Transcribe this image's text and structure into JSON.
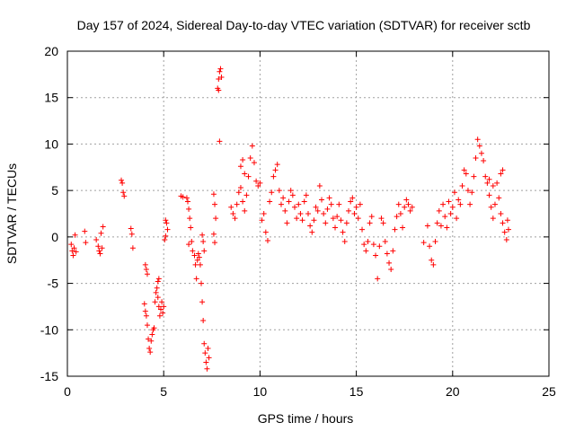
{
  "chart_data": {
    "type": "scatter",
    "title": "Day 157 of 2024, Sidereal Day-to-day VTEC variation (SDTVAR) for receiver sctb",
    "xlabel": "GPS time / hours",
    "ylabel": "SDTVAR / TECUs",
    "xlim": [
      0,
      25
    ],
    "ylim": [
      -15,
      20
    ],
    "xticks": [
      0,
      5,
      10,
      15,
      20,
      25
    ],
    "yticks": [
      -15,
      -10,
      -5,
      0,
      5,
      10,
      15,
      20
    ],
    "grid": true,
    "marker": "+",
    "color": "#ff0000",
    "series": [
      {
        "name": "SDTVAR",
        "points": [
          [
            0.2,
            -0.8
          ],
          [
            0.25,
            -1.5
          ],
          [
            0.3,
            -2.0
          ],
          [
            0.35,
            -1.2
          ],
          [
            0.4,
            0.2
          ],
          [
            0.45,
            -1.6
          ],
          [
            0.9,
            0.6
          ],
          [
            0.95,
            -0.6
          ],
          [
            1.5,
            -0.3
          ],
          [
            1.6,
            -1.0
          ],
          [
            1.65,
            -1.5
          ],
          [
            1.7,
            -1.8
          ],
          [
            1.75,
            0.4
          ],
          [
            1.8,
            -1.2
          ],
          [
            1.85,
            1.1
          ],
          [
            2.8,
            6.1
          ],
          [
            2.85,
            5.8
          ],
          [
            2.9,
            4.8
          ],
          [
            2.95,
            4.4
          ],
          [
            3.3,
            0.9
          ],
          [
            3.35,
            0.3
          ],
          [
            3.4,
            -1.2
          ],
          [
            4.0,
            -7.2
          ],
          [
            4.05,
            -8.0
          ],
          [
            4.1,
            -8.5
          ],
          [
            4.15,
            -9.5
          ],
          [
            4.2,
            -11.0
          ],
          [
            4.25,
            -12.0
          ],
          [
            4.3,
            -12.4
          ],
          [
            4.35,
            -11.2
          ],
          [
            4.4,
            -10.5
          ],
          [
            4.45,
            -10.0
          ],
          [
            4.5,
            -9.8
          ],
          [
            4.05,
            -3.0
          ],
          [
            4.1,
            -3.5
          ],
          [
            4.15,
            -4.0
          ],
          [
            4.55,
            -7.0
          ],
          [
            4.6,
            -6.0
          ],
          [
            4.65,
            -5.5
          ],
          [
            4.7,
            -6.5
          ],
          [
            4.75,
            -7.5
          ],
          [
            4.8,
            -8.5
          ],
          [
            4.85,
            -7.8
          ],
          [
            4.9,
            -7.0
          ],
          [
            4.95,
            -8.2
          ],
          [
            5.0,
            -7.5
          ],
          [
            4.7,
            -4.8
          ],
          [
            4.75,
            -4.5
          ],
          [
            5.1,
            1.8
          ],
          [
            5.15,
            1.5
          ],
          [
            5.2,
            0.8
          ],
          [
            5.1,
            0.1
          ],
          [
            5.05,
            -0.3
          ],
          [
            5.9,
            4.4
          ],
          [
            6.0,
            4.3
          ],
          [
            6.2,
            4.2
          ],
          [
            6.25,
            3.8
          ],
          [
            6.3,
            3.0
          ],
          [
            6.35,
            2.0
          ],
          [
            6.4,
            1.0
          ],
          [
            6.45,
            -0.5
          ],
          [
            6.5,
            -1.5
          ],
          [
            6.3,
            -0.8
          ],
          [
            6.6,
            -2.0
          ],
          [
            6.65,
            -3.0
          ],
          [
            6.7,
            -4.5
          ],
          [
            6.75,
            -2.5
          ],
          [
            6.8,
            -1.8
          ],
          [
            6.85,
            -2.2
          ],
          [
            6.9,
            -3.0
          ],
          [
            6.95,
            -5.0
          ],
          [
            7.0,
            -7.0
          ],
          [
            7.05,
            -9.0
          ],
          [
            7.1,
            -11.5
          ],
          [
            7.15,
            -12.5
          ],
          [
            7.2,
            -13.5
          ],
          [
            7.25,
            -14.2
          ],
          [
            7.3,
            -12.0
          ],
          [
            7.35,
            -13.0
          ],
          [
            7.0,
            0.2
          ],
          [
            7.05,
            -0.5
          ],
          [
            7.1,
            -1.5
          ],
          [
            7.6,
            4.6
          ],
          [
            7.65,
            3.5
          ],
          [
            7.7,
            2.0
          ],
          [
            7.6,
            0.3
          ],
          [
            7.65,
            -0.6
          ],
          [
            7.8,
            16.0
          ],
          [
            7.85,
            17.0
          ],
          [
            7.9,
            17.8
          ],
          [
            7.95,
            18.1
          ],
          [
            8.0,
            17.2
          ],
          [
            7.85,
            15.8
          ],
          [
            7.9,
            10.3
          ],
          [
            8.5,
            3.2
          ],
          [
            8.6,
            2.5
          ],
          [
            8.7,
            2.0
          ],
          [
            8.8,
            3.5
          ],
          [
            8.9,
            4.8
          ],
          [
            9.0,
            5.3
          ],
          [
            9.1,
            3.8
          ],
          [
            9.2,
            2.8
          ],
          [
            9.3,
            4.5
          ],
          [
            9.4,
            6.5
          ],
          [
            9.5,
            8.5
          ],
          [
            9.6,
            9.8
          ],
          [
            9.7,
            8.0
          ],
          [
            9.8,
            6.0
          ],
          [
            9.9,
            5.5
          ],
          [
            10.0,
            5.8
          ],
          [
            9.0,
            7.6
          ],
          [
            9.1,
            8.3
          ],
          [
            9.2,
            6.8
          ],
          [
            10.1,
            1.8
          ],
          [
            10.2,
            2.5
          ],
          [
            10.3,
            0.5
          ],
          [
            10.4,
            -0.4
          ],
          [
            10.5,
            3.8
          ],
          [
            10.6,
            4.8
          ],
          [
            10.7,
            6.5
          ],
          [
            10.8,
            7.2
          ],
          [
            10.9,
            7.8
          ],
          [
            11.0,
            5.0
          ],
          [
            11.1,
            3.5
          ],
          [
            11.2,
            4.2
          ],
          [
            11.3,
            2.8
          ],
          [
            11.4,
            1.5
          ],
          [
            11.5,
            3.8
          ],
          [
            11.6,
            5.0
          ],
          [
            11.7,
            4.5
          ],
          [
            11.8,
            3.2
          ],
          [
            11.9,
            2.0
          ],
          [
            12.0,
            3.5
          ],
          [
            12.1,
            2.5
          ],
          [
            12.2,
            1.8
          ],
          [
            12.3,
            3.8
          ],
          [
            12.4,
            4.5
          ],
          [
            12.5,
            2.5
          ],
          [
            12.6,
            1.2
          ],
          [
            12.7,
            0.5
          ],
          [
            12.8,
            1.8
          ],
          [
            12.9,
            3.2
          ],
          [
            13.0,
            2.8
          ],
          [
            13.1,
            5.5
          ],
          [
            13.2,
            4.0
          ],
          [
            13.3,
            2.5
          ],
          [
            13.4,
            1.5
          ],
          [
            13.5,
            3.0
          ],
          [
            13.6,
            4.2
          ],
          [
            13.7,
            3.5
          ],
          [
            13.8,
            2.0
          ],
          [
            13.9,
            1.0
          ],
          [
            14.0,
            2.2
          ],
          [
            14.1,
            3.5
          ],
          [
            14.2,
            1.8
          ],
          [
            14.3,
            0.5
          ],
          [
            14.4,
            -0.5
          ],
          [
            14.5,
            1.5
          ],
          [
            14.6,
            2.8
          ],
          [
            14.7,
            3.8
          ],
          [
            14.8,
            4.2
          ],
          [
            14.9,
            2.5
          ],
          [
            15.0,
            3.2
          ],
          [
            15.1,
            2.0
          ],
          [
            15.2,
            3.5
          ],
          [
            15.3,
            0.8
          ],
          [
            15.4,
            -0.8
          ],
          [
            15.5,
            -1.5
          ],
          [
            15.6,
            -0.5
          ],
          [
            15.7,
            1.5
          ],
          [
            15.8,
            2.2
          ],
          [
            15.9,
            -0.8
          ],
          [
            16.0,
            -2.0
          ],
          [
            16.1,
            -4.5
          ],
          [
            16.2,
            -1.0
          ],
          [
            16.3,
            2.0
          ],
          [
            16.4,
            1.5
          ],
          [
            16.5,
            -0.5
          ],
          [
            16.6,
            -1.8
          ],
          [
            16.7,
            -2.8
          ],
          [
            16.8,
            -3.5
          ],
          [
            16.9,
            -1.5
          ],
          [
            17.0,
            0.8
          ],
          [
            17.1,
            2.2
          ],
          [
            17.2,
            3.5
          ],
          [
            17.3,
            2.5
          ],
          [
            17.4,
            1.0
          ],
          [
            17.5,
            3.2
          ],
          [
            17.6,
            4.0
          ],
          [
            17.7,
            3.5
          ],
          [
            17.8,
            2.8
          ],
          [
            17.9,
            3.2
          ],
          [
            18.5,
            -0.6
          ],
          [
            18.7,
            1.2
          ],
          [
            18.8,
            -1.0
          ],
          [
            18.9,
            -2.5
          ],
          [
            19.0,
            -3.0
          ],
          [
            19.1,
            -0.5
          ],
          [
            19.2,
            1.5
          ],
          [
            19.3,
            2.8
          ],
          [
            19.4,
            1.2
          ],
          [
            19.5,
            3.5
          ],
          [
            19.6,
            2.2
          ],
          [
            19.7,
            1.0
          ],
          [
            19.8,
            3.8
          ],
          [
            19.9,
            2.5
          ],
          [
            20.0,
            3.2
          ],
          [
            20.1,
            4.8
          ],
          [
            20.2,
            2.0
          ],
          [
            20.3,
            4.0
          ],
          [
            20.4,
            3.5
          ],
          [
            20.5,
            5.5
          ],
          [
            20.6,
            7.2
          ],
          [
            20.7,
            6.8
          ],
          [
            20.8,
            5.0
          ],
          [
            20.9,
            3.5
          ],
          [
            21.0,
            4.8
          ],
          [
            21.1,
            6.5
          ],
          [
            21.2,
            8.5
          ],
          [
            21.3,
            10.5
          ],
          [
            21.4,
            9.8
          ],
          [
            21.5,
            9.0
          ],
          [
            21.6,
            8.2
          ],
          [
            21.7,
            6.5
          ],
          [
            21.8,
            5.8
          ],
          [
            21.9,
            4.5
          ],
          [
            22.0,
            3.2
          ],
          [
            22.1,
            2.0
          ],
          [
            22.2,
            3.5
          ],
          [
            22.3,
            5.8
          ],
          [
            22.4,
            4.2
          ],
          [
            22.5,
            2.5
          ],
          [
            22.6,
            1.5
          ],
          [
            22.7,
            0.5
          ],
          [
            22.8,
            -0.3
          ],
          [
            22.85,
            1.8
          ],
          [
            22.9,
            0.8
          ],
          [
            22.5,
            6.8
          ],
          [
            22.6,
            7.2
          ],
          [
            22.1,
            5.5
          ],
          [
            21.9,
            6.2
          ]
        ]
      }
    ]
  }
}
